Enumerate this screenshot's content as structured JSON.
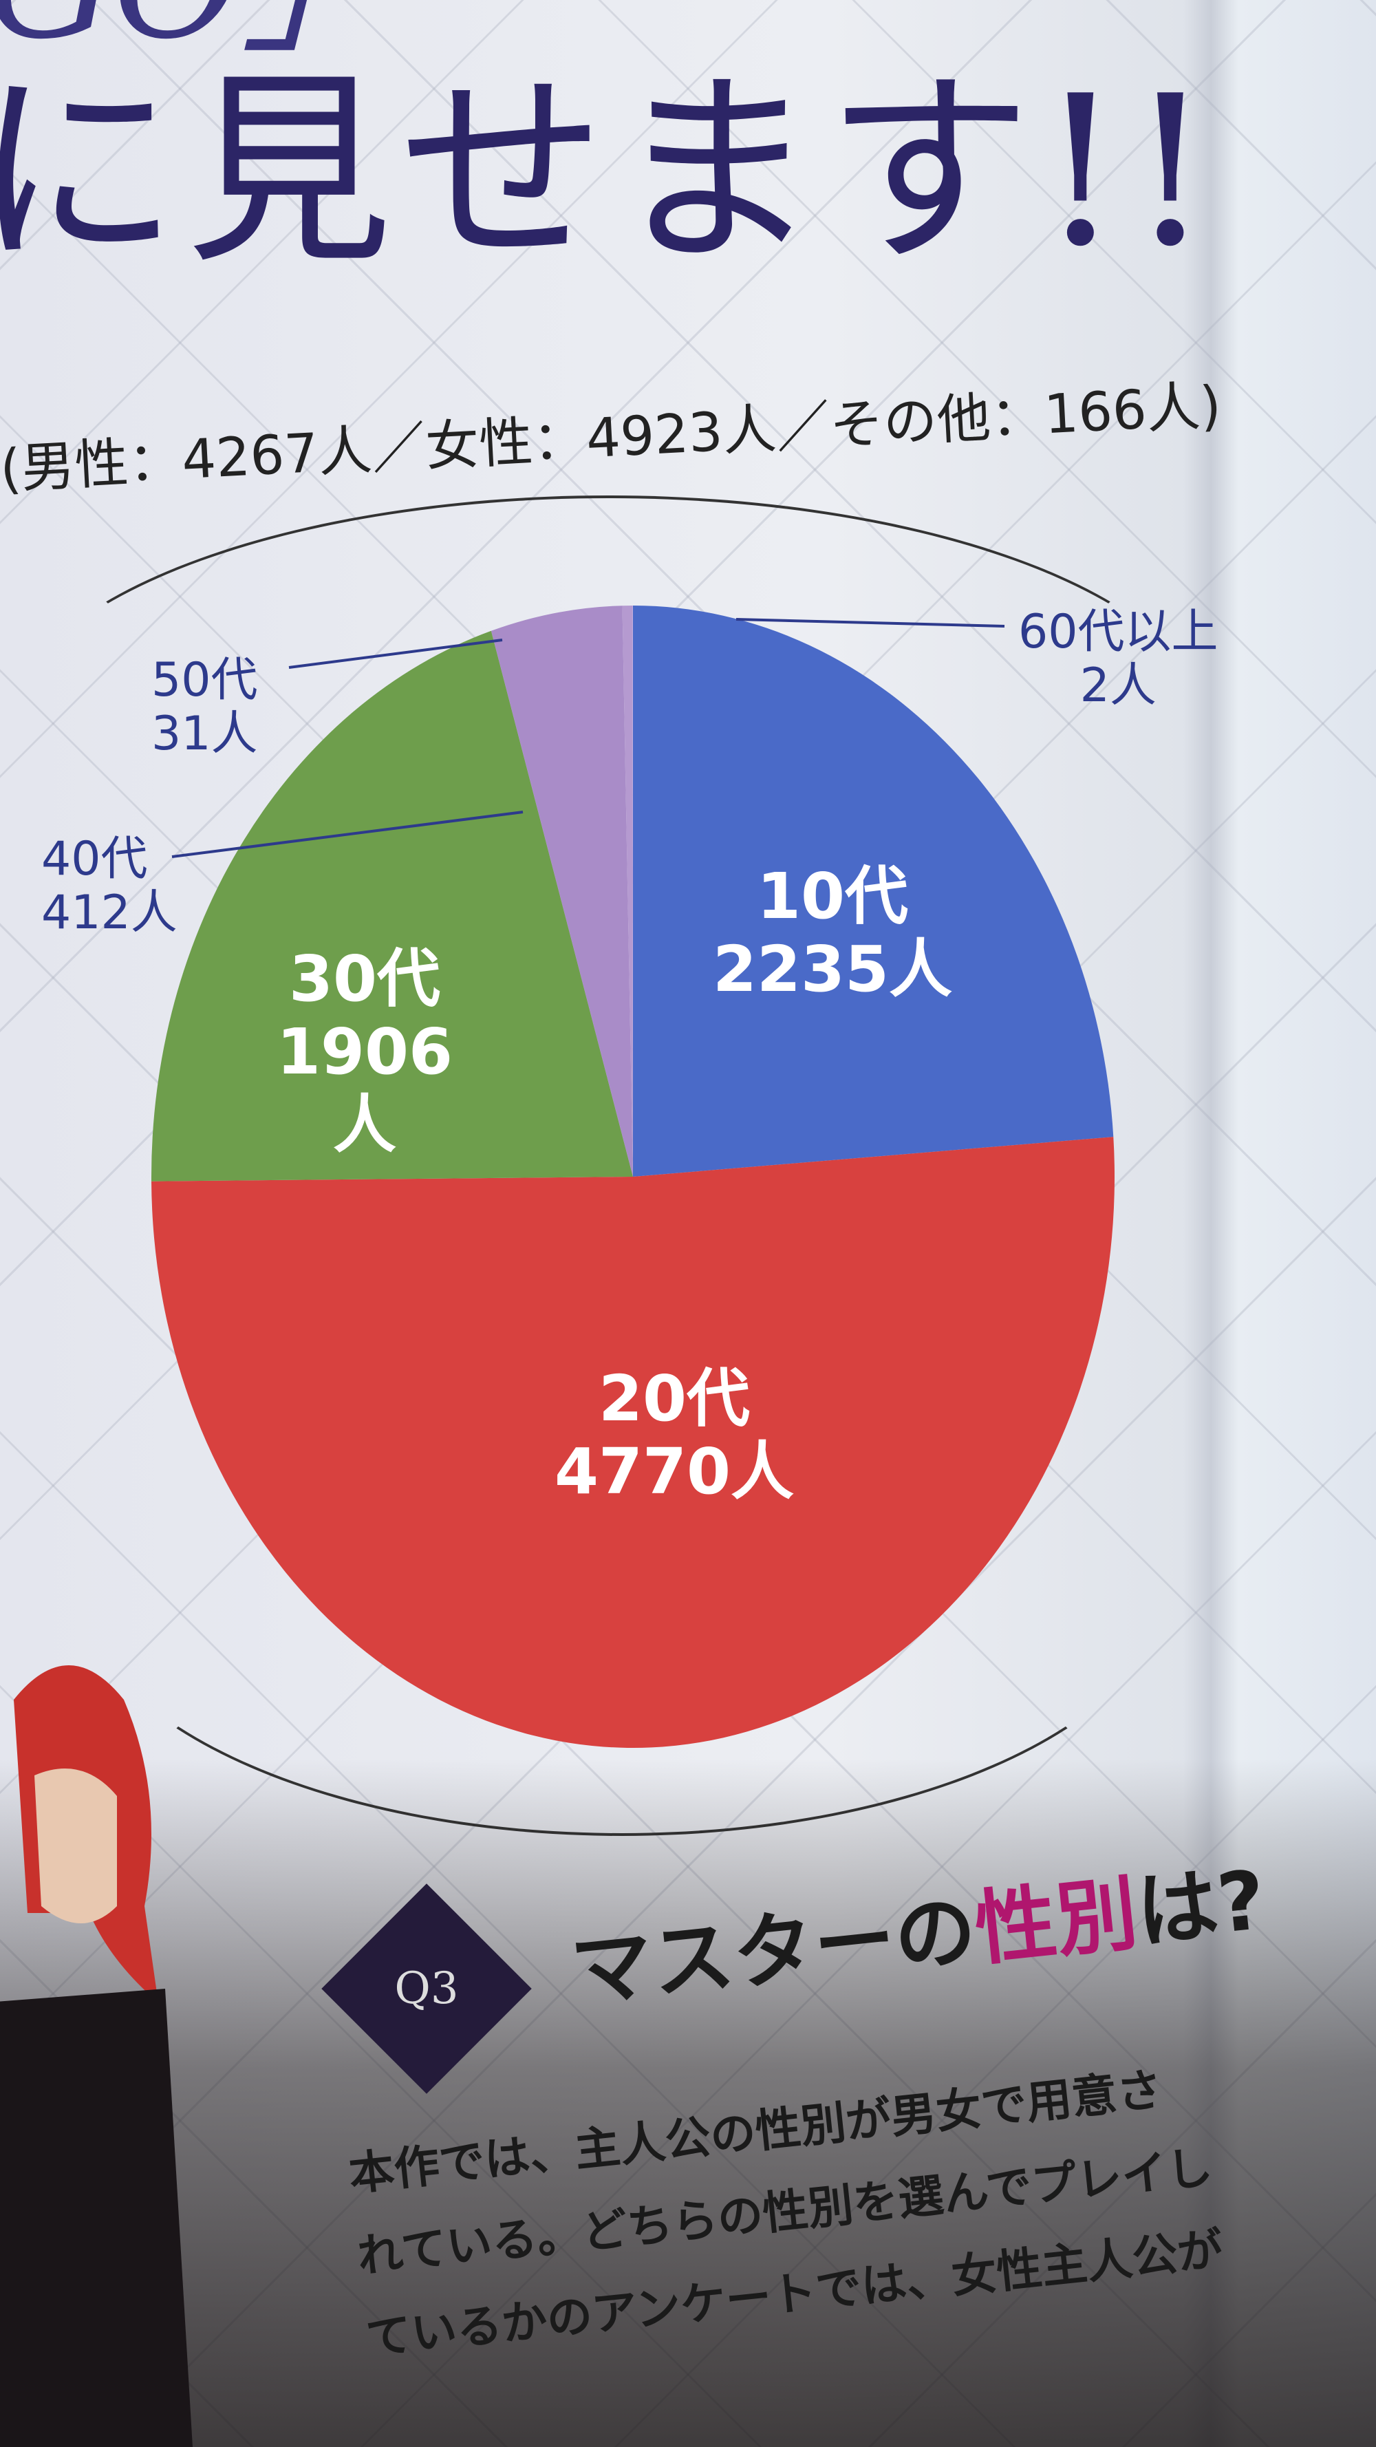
{
  "headline": {
    "top": "GO」",
    "main": "に見せます!!"
  },
  "subtitle": "(男性：4267人／女性：4923人／その他：166人)",
  "chart_data": {
    "type": "pie",
    "title": "",
    "start": "top",
    "direction": "clockwise",
    "unit": "人",
    "slices": [
      {
        "label": "10代",
        "value": 2235,
        "value_text": "2235人",
        "color": "#4a6ac8"
      },
      {
        "label": "20代",
        "value": 4770,
        "value_text": "4770人",
        "color": "#d8413f"
      },
      {
        "label": "30代",
        "value": 1906,
        "value_text": "1906人",
        "color": "#6e9e4c"
      },
      {
        "label": "40代",
        "value": 412,
        "value_text": "412人",
        "color": "#a98cc8"
      },
      {
        "label": "50代",
        "value": 31,
        "value_text": "31人",
        "color": "#b59ad0"
      },
      {
        "label": "60代以上",
        "value": 2,
        "value_text": "2人",
        "color": "#c0a8dc"
      }
    ]
  },
  "question": {
    "badge": "Q3",
    "title_pre": "マスターの",
    "title_highlight": "性別",
    "title_post": "は?"
  },
  "body_lines": [
    "本作では、主人公の性別が男女で用意さ",
    "れている。どちらの性別を選んでプレイし",
    "ているかのアンケートでは、女性主人公が"
  ]
}
